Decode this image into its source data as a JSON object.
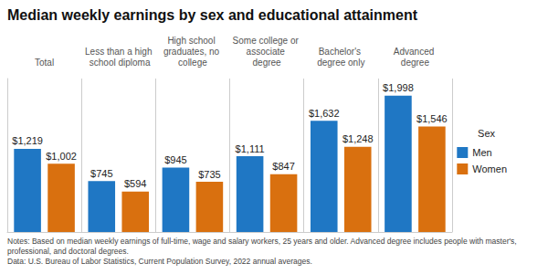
{
  "chart_data": {
    "type": "bar",
    "title": "Median weekly earnings by sex and educational attainment",
    "categories": [
      "Total",
      "Less than a high school diploma",
      "High school graduates, no college",
      "Some college or associate degree",
      "Bachelor's degree only",
      "Advanced degree"
    ],
    "series": [
      {
        "name": "Men",
        "color": "#1f77c4",
        "values": [
          1219,
          745,
          945,
          1111,
          1632,
          1998
        ],
        "value_labels": [
          "$1,219",
          "$745",
          "$945",
          "$1,111",
          "$1,632",
          "$1,998"
        ]
      },
      {
        "name": "Women",
        "color": "#d9700f",
        "values": [
          1002,
          594,
          735,
          847,
          1248,
          1546
        ],
        "value_labels": [
          "$1,002",
          "$594",
          "$735",
          "$847",
          "$1,248",
          "$1,546"
        ]
      }
    ],
    "ylim": [
      0,
      2250
    ],
    "tick_labels": "x",
    "grid": false,
    "data_labels": true,
    "legend": "right",
    "legend_title": "Sex",
    "notes": [
      "Notes: Based on median weekly earnings of full-time, wage and salary workers, 25 years and older. Advanced degree includes people with master's,",
      "professional, and doctoral degrees.",
      "Data: U.S. Bureau of Labor Statistics, Current Population Survey, 2022 annual averages."
    ]
  }
}
